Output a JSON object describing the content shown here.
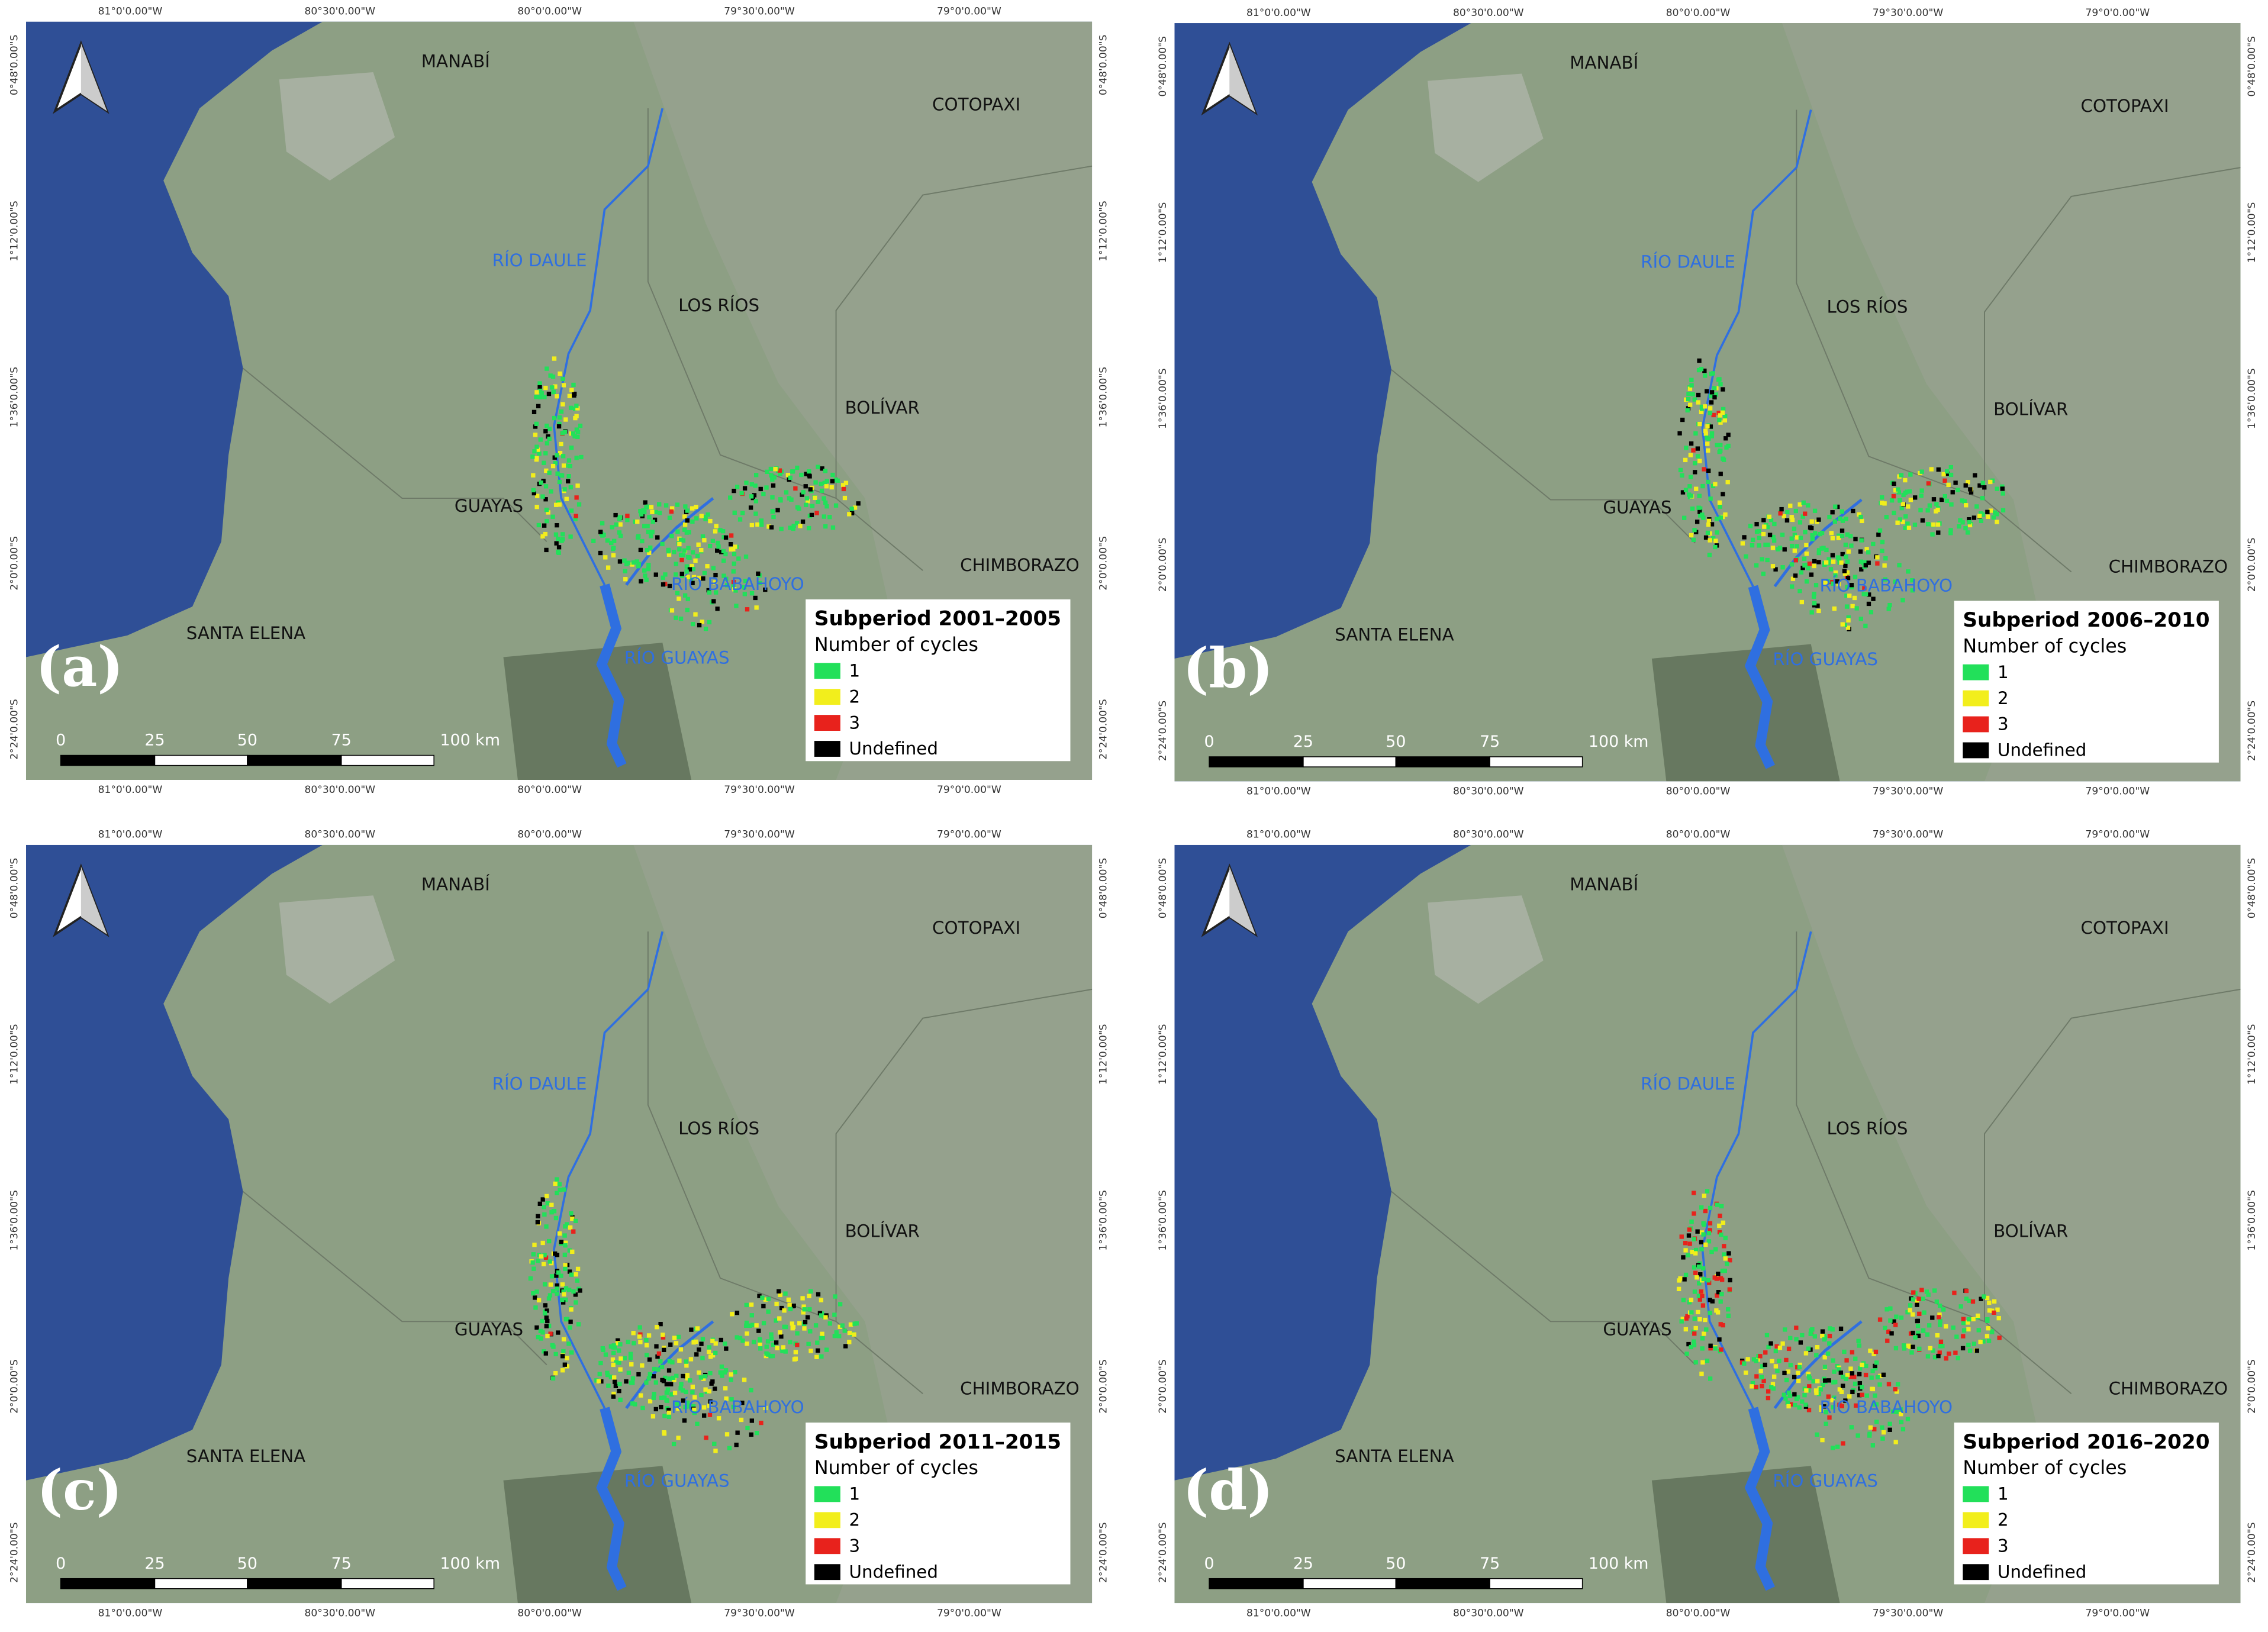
{
  "panels": [
    {
      "label": "(a)",
      "legend_title": "Subperiod 2001–2005"
    },
    {
      "label": "(b)",
      "legend_title": "Subperiod 2006–2010"
    },
    {
      "label": "(c)",
      "legend_title": "Subperiod 2011–2015"
    },
    {
      "label": "(d)",
      "legend_title": "Subperiod 2016–2020"
    }
  ],
  "legend": {
    "subtitle": "Number of cycles",
    "items": [
      {
        "label": "1",
        "color": "#22e05a"
      },
      {
        "label": "2",
        "color": "#f2ee1c"
      },
      {
        "label": "3",
        "color": "#e8221c"
      },
      {
        "label": "Undefined",
        "color": "#000000"
      }
    ]
  },
  "places": [
    "MANABÍ",
    "COTOPAXI",
    "LOS RÍOS",
    "BOLÍVAR",
    "GUAYAS",
    "CHIMBORAZO",
    "SANTA ELENA"
  ],
  "rivers": [
    "RÍO DAULE",
    "RÍO BABAHOYO",
    "RÍO GUAYAS"
  ],
  "scale_labels": [
    "0",
    "25",
    "50",
    "75",
    "100 km"
  ],
  "lon_labels": [
    "81°0'0.00\"W",
    "80°30'0.00\"W",
    "80°0'0.00\"W",
    "79°30'0.00\"W",
    "79°0'0.00\"W"
  ],
  "lat_labels": [
    "0°48'0.00\"S",
    "1°12'0.00\"S",
    "1°36'0.00\"S",
    "2°0'0.00\"S",
    "2°24'0.00\"S"
  ]
}
